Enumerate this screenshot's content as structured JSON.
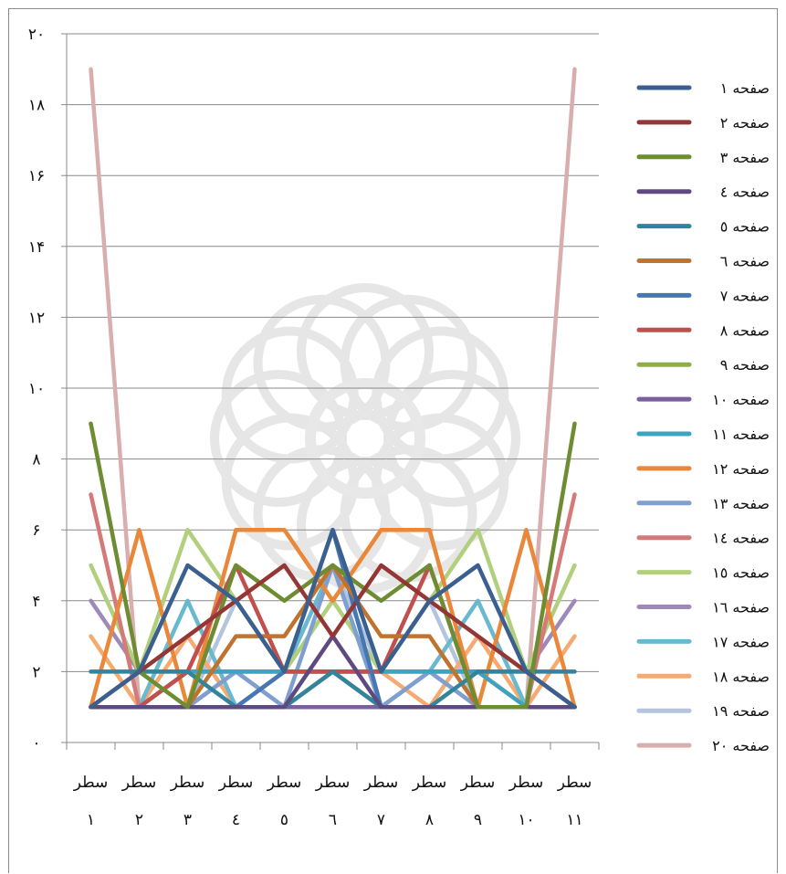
{
  "chart_data": {
    "type": "line",
    "categories": [
      {
        "line1": "سطر",
        "line2": "١"
      },
      {
        "line1": "سطر",
        "line2": "٢"
      },
      {
        "line1": "سطر",
        "line2": "٣"
      },
      {
        "line1": "سطر",
        "line2": "٤"
      },
      {
        "line1": "سطر",
        "line2": "٥"
      },
      {
        "line1": "سطر",
        "line2": "٦"
      },
      {
        "line1": "سطر",
        "line2": "٧"
      },
      {
        "line1": "سطر",
        "line2": "٨"
      },
      {
        "line1": "سطر",
        "line2": "٩"
      },
      {
        "line1": "سطر",
        "line2": "١٠"
      },
      {
        "line1": "سطر",
        "line2": "١١"
      }
    ],
    "y_ticks": [
      {
        "value": 0,
        "label": "٠"
      },
      {
        "value": 2,
        "label": "٢"
      },
      {
        "value": 4,
        "label": "۴"
      },
      {
        "value": 6,
        "label": "۶"
      },
      {
        "value": 8,
        "label": "٨"
      },
      {
        "value": 10,
        "label": "١٠"
      },
      {
        "value": 12,
        "label": "١٢"
      },
      {
        "value": 14,
        "label": "١۴"
      },
      {
        "value": 16,
        "label": "١۶"
      },
      {
        "value": 18,
        "label": "١٨"
      },
      {
        "value": 20,
        "label": "٢٠"
      }
    ],
    "ylim": [
      0,
      20
    ],
    "grid": true,
    "legend_position": "right",
    "series": [
      {
        "name": "صفحه ١",
        "color": "#3b5f8f",
        "values": [
          1,
          2,
          5,
          4,
          2,
          6,
          2,
          4,
          5,
          2,
          1
        ]
      },
      {
        "name": "صفحه ٢",
        "color": "#943634",
        "values": [
          1,
          2,
          3,
          4,
          5,
          3,
          5,
          4,
          3,
          2,
          1
        ]
      },
      {
        "name": "صفحه ٣",
        "color": "#6e8c32",
        "values": [
          9,
          2,
          1,
          5,
          4,
          5,
          4,
          5,
          1,
          1,
          9
        ]
      },
      {
        "name": "صفحه ٤",
        "color": "#5e4a80",
        "values": [
          1,
          1,
          1,
          1,
          1,
          3,
          1,
          1,
          1,
          1,
          1
        ]
      },
      {
        "name": "صفحه ٥",
        "color": "#31849b",
        "values": [
          2,
          2,
          2,
          1,
          1,
          2,
          1,
          1,
          2,
          2,
          2
        ]
      },
      {
        "name": "صفحه ٦",
        "color": "#c0732e",
        "values": [
          1,
          1,
          1,
          3,
          3,
          5,
          3,
          3,
          1,
          1,
          1
        ]
      },
      {
        "name": "صفحه ٧",
        "color": "#4676b4",
        "values": [
          1,
          1,
          1,
          1,
          2,
          6,
          1,
          1,
          1,
          1,
          1
        ]
      },
      {
        "name": "صفحه ٨",
        "color": "#c0504d",
        "values": [
          1,
          1,
          2,
          5,
          2,
          2,
          2,
          5,
          1,
          1,
          1
        ]
      },
      {
        "name": "صفحه ٩",
        "color": "#8eaf48",
        "values": [
          1,
          1,
          1,
          1,
          1,
          2,
          1,
          1,
          1,
          1,
          1
        ]
      },
      {
        "name": "صفحه ١٠",
        "color": "#7c5fa0",
        "values": [
          1,
          1,
          1,
          1,
          1,
          1,
          1,
          1,
          1,
          1,
          1
        ]
      },
      {
        "name": "صفحه ١١",
        "color": "#3ea3bf",
        "values": [
          1,
          1,
          2,
          2,
          2,
          2,
          2,
          2,
          2,
          1,
          1
        ]
      },
      {
        "name": "صفحه ١٢",
        "color": "#e9883a",
        "values": [
          1,
          6,
          1,
          6,
          6,
          4,
          6,
          6,
          1,
          6,
          1
        ]
      },
      {
        "name": "صفحه ١٣",
        "color": "#7f9fd0",
        "values": [
          1,
          1,
          1,
          2,
          1,
          5,
          1,
          2,
          1,
          1,
          1
        ]
      },
      {
        "name": "صفحه ١٤",
        "color": "#d47a78",
        "values": [
          7,
          1,
          2,
          2,
          2,
          2,
          2,
          2,
          2,
          1,
          7
        ]
      },
      {
        "name": "صفحه ١٥",
        "color": "#b2cf7e",
        "values": [
          5,
          2,
          6,
          4,
          2,
          4,
          2,
          4,
          6,
          2,
          5
        ]
      },
      {
        "name": "صفحه ١٦",
        "color": "#9e8ab8",
        "values": [
          4,
          2,
          2,
          2,
          2,
          2,
          2,
          2,
          2,
          2,
          4
        ]
      },
      {
        "name": "صفحه ١٧",
        "color": "#68b9cf",
        "values": [
          1,
          1,
          4,
          1,
          2,
          5,
          1,
          2,
          4,
          1,
          1
        ]
      },
      {
        "name": "صفحه ١٨",
        "color": "#f5aa72",
        "values": [
          3,
          1,
          3,
          1,
          2,
          2,
          2,
          1,
          3,
          1,
          3
        ]
      },
      {
        "name": "صفحه ١٩",
        "color": "#b3c4dc",
        "values": [
          1,
          1,
          1,
          4,
          2,
          5,
          2,
          4,
          1,
          1,
          1
        ]
      },
      {
        "name": "صفحه ٢٠",
        "color": "#d8aeae",
        "values": [
          19,
          1,
          1,
          2,
          1,
          2,
          1,
          2,
          1,
          1,
          19
        ]
      }
    ]
  }
}
